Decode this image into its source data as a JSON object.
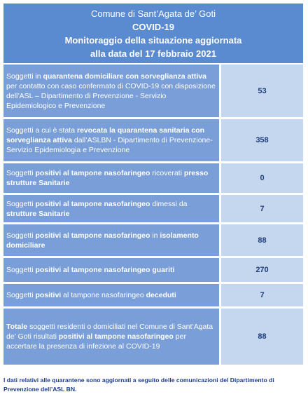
{
  "header": {
    "lines": [
      "Comune di Sant’Agata de’ Goti",
      "COVID-19",
      "Monitoraggio della situazione aggiornata",
      "alla data del 17 febbraio 2021"
    ]
  },
  "table": {
    "rows": [
      {
        "label": [
          {
            "text": "Soggetti in ",
            "bold": false
          },
          {
            "text": "quarantena domiciliare con sorveglianza attiva",
            "bold": true
          },
          {
            "text": " per contatto con caso confermato di COVID-19 con disposizione dell’ASL – Dipartimento di Prevenzione - Servizio Epidemiologico e Prevenzione",
            "bold": false
          }
        ],
        "value": 53
      },
      {
        "label": [
          {
            "text": "Soggetti a cui è stata ",
            "bold": false
          },
          {
            "text": "revocata la quarantena sanitaria con sorveglianza attiva",
            "bold": true
          },
          {
            "text": " dall’ASLBN - Dipartimento di Prevenzione-Servizio Epidemiologia e Prevenzione",
            "bold": false
          }
        ],
        "value": 358
      },
      {
        "label": [
          {
            "text": "Soggetti ",
            "bold": false
          },
          {
            "text": "positivi al tampone nasofaringeo",
            "bold": true
          },
          {
            "text": " ricoverati ",
            "bold": false
          },
          {
            "text": "presso strutture Sanitarie",
            "bold": true
          }
        ],
        "value": 0
      },
      {
        "label": [
          {
            "text": "Soggetti ",
            "bold": false
          },
          {
            "text": "positivi al tampone nasofaringeo",
            "bold": true
          },
          {
            "text": " dimessi da ",
            "bold": false
          },
          {
            "text": "strutture Sanitarie",
            "bold": true
          }
        ],
        "value": 7
      },
      {
        "label": [
          {
            "text": "Soggetti ",
            "bold": false
          },
          {
            "text": "positivi al tampone nasofaringeo",
            "bold": true
          },
          {
            "text": " in ",
            "bold": false
          },
          {
            "text": "isolamento domiciliare",
            "bold": true
          }
        ],
        "value": 88
      },
      {
        "label": [
          {
            "text": "Soggetti ",
            "bold": false
          },
          {
            "text": "positivi al tampone nasofaringeo guariti",
            "bold": true
          }
        ],
        "value": 270
      },
      {
        "label": [
          {
            "text": "Soggetti ",
            "bold": false
          },
          {
            "text": "positivi",
            "bold": true
          },
          {
            "text": " al tampone nasofaringeo ",
            "bold": false
          },
          {
            "text": "deceduti",
            "bold": true
          }
        ],
        "value": 7
      },
      {
        "label": [
          {
            "text": "Totale",
            "bold": true
          },
          {
            "text": " soggetti residenti o domiciliati nel Comune di Sant’Agata de’ Goti risultati ",
            "bold": false
          },
          {
            "text": "positivi al tampone nasofaringeo",
            "bold": true
          },
          {
            "text": " per accertare la presenza di infezione al COVID-19",
            "bold": false
          }
        ],
        "value": 88
      }
    ]
  },
  "note": "I dati relativi alle quarantene sono aggiornati a seguito delle comunicazioni del Dipartimento di Prevenzione dell’ASL BN."
}
